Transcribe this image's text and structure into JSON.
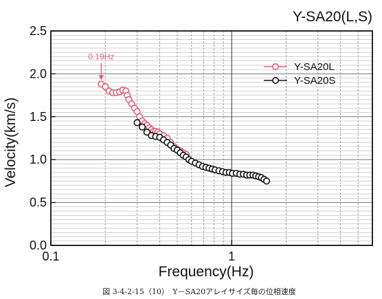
{
  "chart_data": {
    "type": "scatter",
    "title": "Y-SA20(L,S)",
    "xlabel": "Frequency(Hz)",
    "ylabel": "Velocity(km/s)",
    "xscale": "log",
    "xlim": [
      0.1,
      6
    ],
    "ylim": [
      0.0,
      2.5
    ],
    "x_ticks": [
      {
        "value": 0.1,
        "label": "0.1"
      },
      {
        "value": 1,
        "label": "1"
      }
    ],
    "y_ticks": [
      {
        "value": 0.0,
        "label": "0.0"
      },
      {
        "value": 0.5,
        "label": "0.5"
      },
      {
        "value": 1.0,
        "label": "1.0"
      },
      {
        "value": 1.5,
        "label": "1.5"
      },
      {
        "value": 2.0,
        "label": "2.0"
      },
      {
        "value": 2.5,
        "label": "2.5"
      }
    ],
    "grid": true,
    "legend_position": "top-right",
    "annotation": {
      "text": "0.19Hz",
      "x": 0.19,
      "y": 1.88
    },
    "caption": "図 3-4-2-15（10）　Y－SA20アレイサイズ毎の位相速度",
    "series": [
      {
        "name": "Y-SA20L",
        "color": "#e0607a",
        "marker": "open-circle",
        "x": [
          0.19,
          0.2,
          0.21,
          0.22,
          0.23,
          0.24,
          0.25,
          0.26,
          0.265,
          0.27,
          0.28,
          0.29,
          0.3,
          0.31,
          0.32,
          0.33,
          0.34,
          0.35,
          0.36,
          0.37,
          0.38,
          0.39,
          0.4,
          0.42,
          0.44,
          0.46,
          0.48,
          0.5,
          0.52,
          0.54,
          0.56
        ],
        "y": [
          1.88,
          1.85,
          1.8,
          1.78,
          1.78,
          1.79,
          1.81,
          1.8,
          1.75,
          1.7,
          1.65,
          1.6,
          1.56,
          1.5,
          1.45,
          1.42,
          1.4,
          1.37,
          1.35,
          1.33,
          1.33,
          1.32,
          1.3,
          1.28,
          1.25,
          1.2,
          1.15,
          1.12,
          1.1,
          1.08,
          1.06
        ]
      },
      {
        "name": "Y-SA20S",
        "color": "#111111",
        "marker": "open-circle",
        "x": [
          0.3,
          0.32,
          0.34,
          0.36,
          0.38,
          0.4,
          0.42,
          0.44,
          0.46,
          0.48,
          0.5,
          0.52,
          0.54,
          0.56,
          0.58,
          0.6,
          0.63,
          0.66,
          0.69,
          0.72,
          0.75,
          0.78,
          0.81,
          0.85,
          0.89,
          0.93,
          0.97,
          1.01,
          1.06,
          1.11,
          1.16,
          1.21,
          1.26,
          1.31,
          1.36,
          1.41,
          1.46,
          1.51,
          1.56
        ],
        "y": [
          1.43,
          1.38,
          1.32,
          1.28,
          1.27,
          1.26,
          1.23,
          1.2,
          1.17,
          1.13,
          1.11,
          1.08,
          1.05,
          1.03,
          1.0,
          0.98,
          0.96,
          0.94,
          0.92,
          0.91,
          0.9,
          0.89,
          0.88,
          0.87,
          0.86,
          0.85,
          0.85,
          0.84,
          0.84,
          0.83,
          0.83,
          0.82,
          0.82,
          0.82,
          0.81,
          0.8,
          0.79,
          0.77,
          0.75
        ]
      }
    ]
  }
}
